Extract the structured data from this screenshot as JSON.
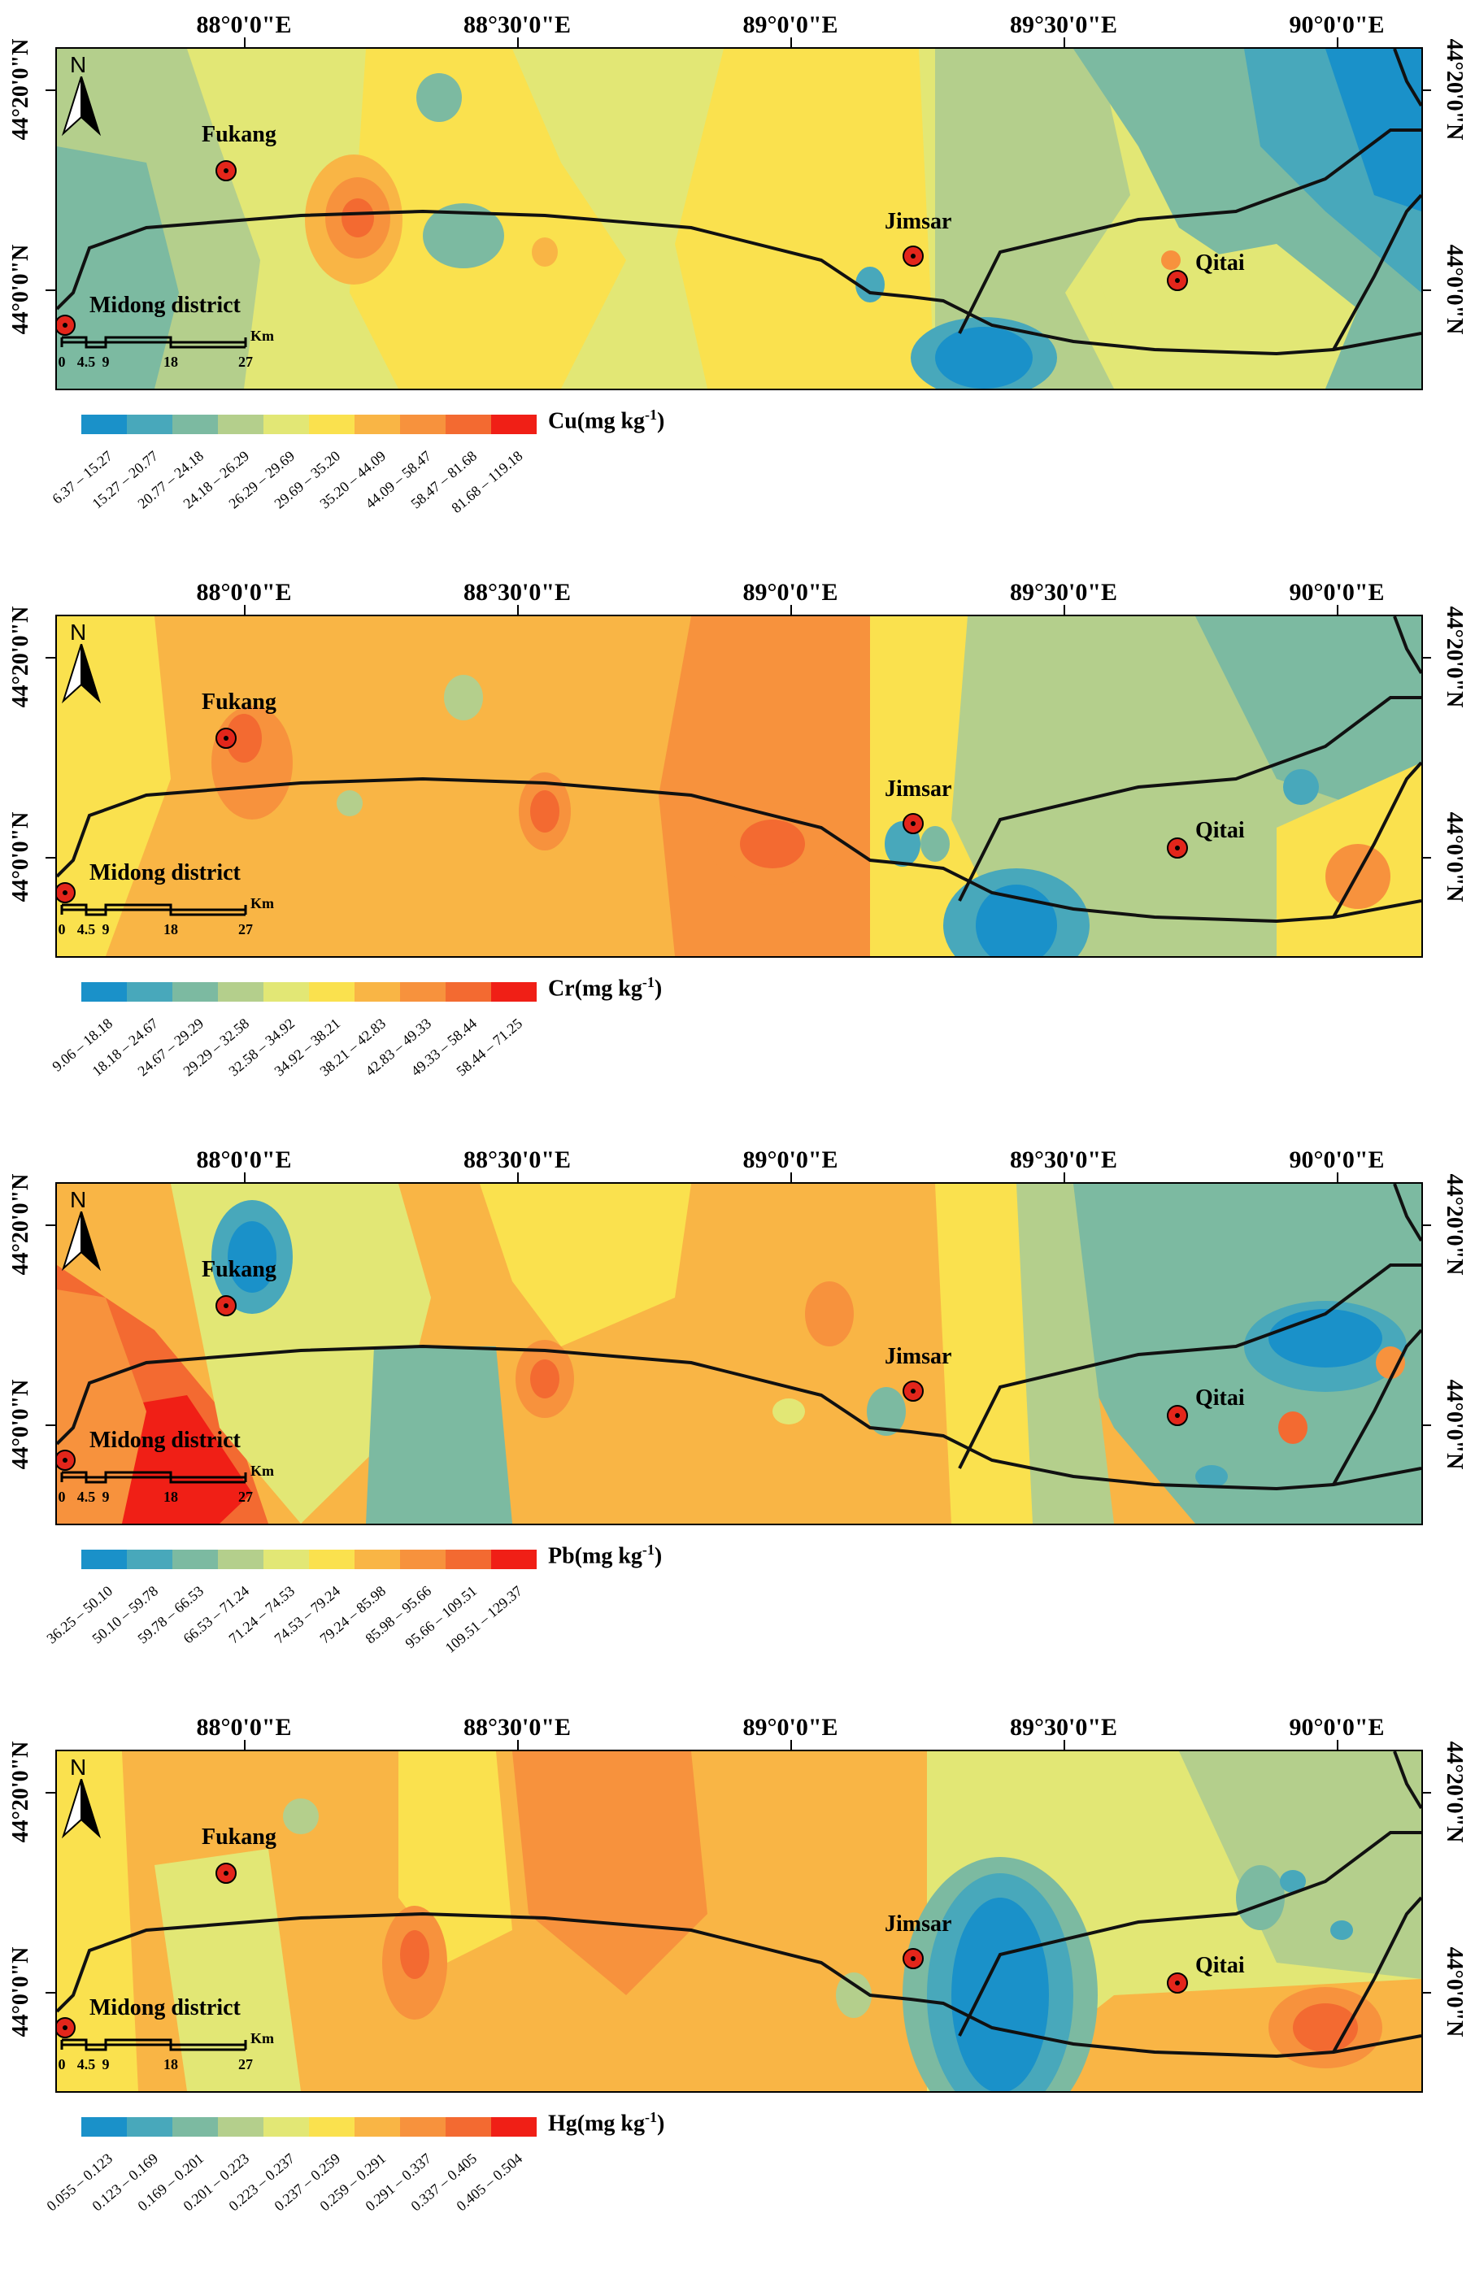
{
  "longitude_labels": [
    "88°0'0\"E",
    "88°30'0\"E",
    "89°0'0\"E",
    "89°30'0\"E",
    "90°0'0\"E"
  ],
  "latitude_labels": {
    "north": "44°20'0\"N",
    "south": "44°0'0\"N"
  },
  "north_arrow": "N",
  "places": {
    "fukang": "Fukang",
    "jimsar": "Jimsar",
    "qitai": "Qitai",
    "midong": "Midong district"
  },
  "scale": {
    "ticks": [
      "0",
      "4.5",
      "9",
      "18",
      "27"
    ],
    "unit": "Km"
  },
  "colors": {
    "classes": [
      "#1a91c9",
      "#48a8bb",
      "#7cbaa1",
      "#b4cf8c",
      "#e2e775",
      "#fae14e",
      "#f9b545",
      "#f7923d",
      "#f36a31",
      "#f01f16"
    ],
    "boundary": "#111111"
  },
  "panels": [
    {
      "id": "cu",
      "legend_title": "Cu(mg kg",
      "legend_sup": "-1",
      "legend_close": ")",
      "classes": [
        "6.37 – 15.27",
        "15.27 – 20.77",
        "20.77 – 24.18",
        "24.18 – 26.29",
        "26.29 – 29.69",
        "29.69 – 35.20",
        "35.20 – 44.09",
        "44.09 – 58.47",
        "58.47 – 81.68",
        "81.68 – 119.18"
      ]
    },
    {
      "id": "cr",
      "legend_title": "Cr(mg kg",
      "legend_sup": "-1",
      "legend_close": ")",
      "classes": [
        "9.06 – 18.18",
        "18.18 – 24.67",
        "24.67 – 29.29",
        "29.29 – 32.58",
        "32.58 – 34.92",
        "34.92 – 38.21",
        "38.21 – 42.83",
        "42.83 – 49.33",
        "49.33 – 58.44",
        "58.44 – 71.25"
      ]
    },
    {
      "id": "pb",
      "legend_title": "Pb(mg kg",
      "legend_sup": "-1",
      "legend_close": ")",
      "classes": [
        "36.25 – 50.10",
        "50.10 – 59.78",
        "59.78 – 66.53",
        "66.53 – 71.24",
        "71.24 – 74.53",
        "74.53 – 79.24",
        "79.24 – 85.98",
        "85.98 – 95.66",
        "95.66 – 109.51",
        "109.51 – 129.37"
      ]
    },
    {
      "id": "hg",
      "legend_title": "Hg(mg kg",
      "legend_sup": "-1",
      "legend_close": ")",
      "classes": [
        "0.055 – 0.123",
        "0.123 – 0.169",
        "0.169 – 0.201",
        "0.201 – 0.223",
        "0.223 – 0.237",
        "0.237 – 0.259",
        "0.259 – 0.291",
        "0.291 – 0.337",
        "0.337 – 0.405",
        "0.405 – 0.504"
      ]
    }
  ]
}
